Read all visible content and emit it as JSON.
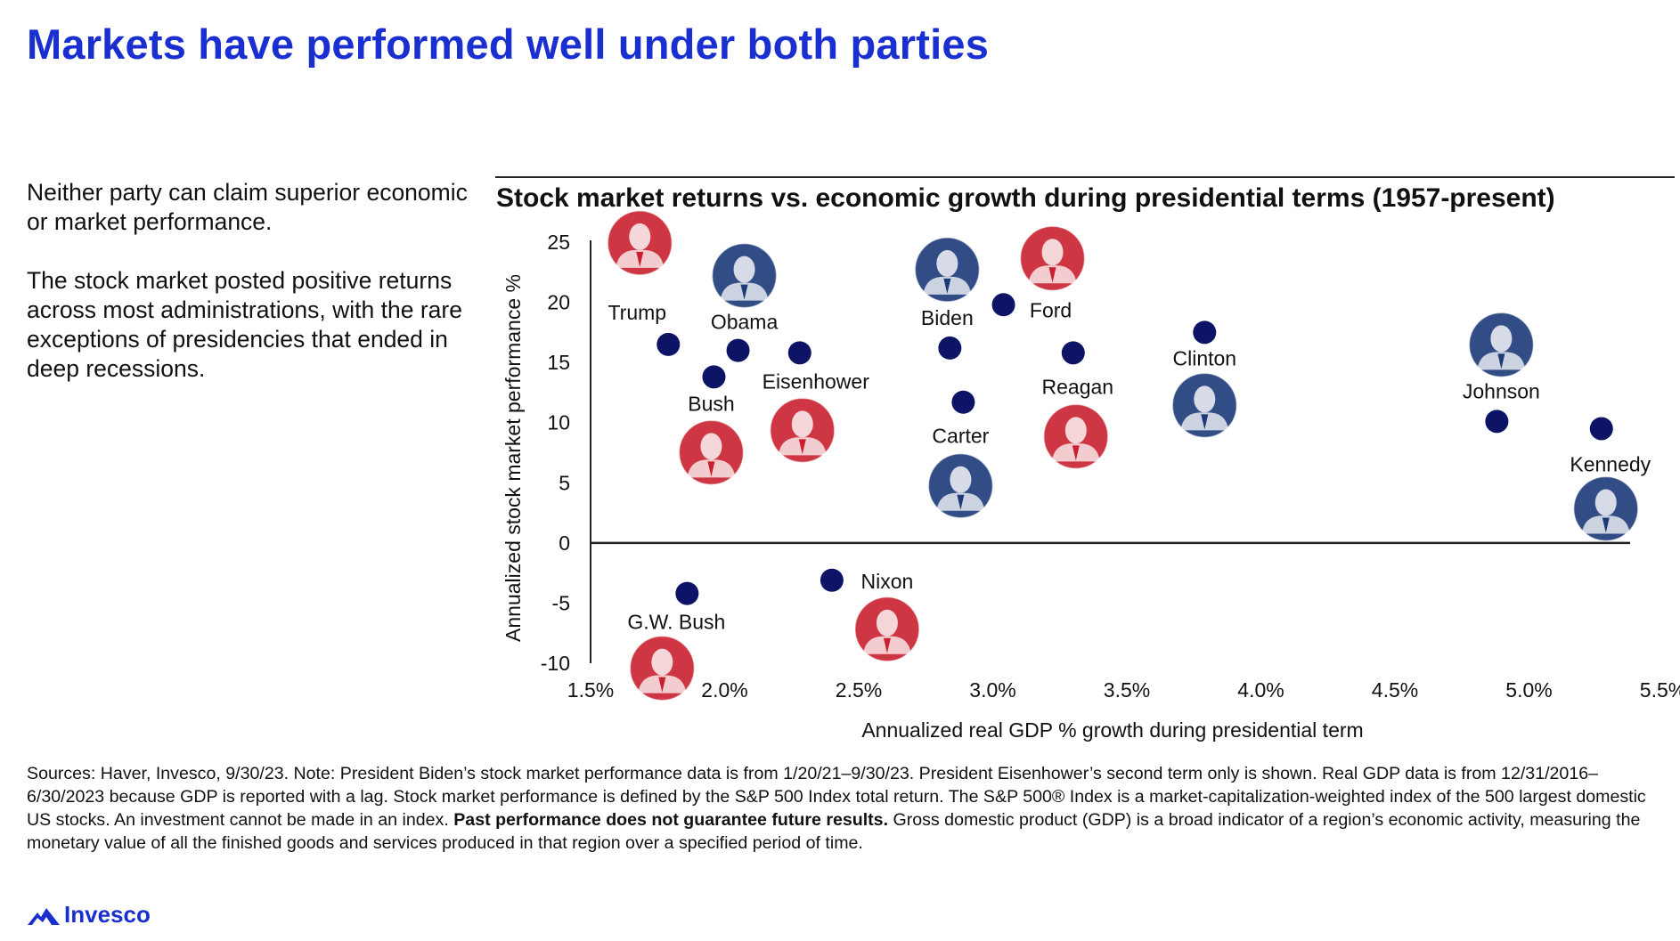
{
  "page": {
    "title": "Markets have performed well under both parties",
    "side_paragraphs": [
      "Neither party can claim superior economic or market performance.",
      "The stock market posted positive returns across most administrations, with the rare exceptions of presidencies that ended in deep recessions."
    ],
    "footnote": {
      "part1": "Sources: Haver, Invesco, 9/30/23. Note: President Biden’s stock market performance data is from 1/20/21–9/30/23. President Eisenhower’s second term only is shown. Real GDP data is from 12/31/2016–6/30/2023 because GDP is reported with a lag. Stock market performance is defined by the S&P 500 Index total return. The S&P 500® Index is a market-capitalization-weighted index of the 500 largest domestic US stocks. An investment cannot be made in an index. ",
      "bold": "Past performance does not guarantee future results.",
      "part2": " Gross domestic product (GDP) is a broad indicator of a region’s economic activity, measuring the monetary value of all the finished goods and services produced in that region over a specified period of time."
    },
    "brand": "Invesco",
    "colors": {
      "title": "#1a2fd0",
      "point": "#0d1466",
      "republican": "#c8202e",
      "democrat": "#1c3a78"
    }
  },
  "chart_data": {
    "type": "scatter",
    "title": "Stock market returns vs. economic growth during presidential terms (1957-present)",
    "xlabel": "Annualized real GDP % growth during presidential term",
    "ylabel": "Annualized stock market performance %",
    "xlim": [
      1.5,
      5.5
    ],
    "ylim": [
      -10,
      25
    ],
    "xticks": [
      "1.5%",
      "2.0%",
      "2.5%",
      "3.0%",
      "3.5%",
      "4.0%",
      "4.5%",
      "5.0%",
      "5.5%"
    ],
    "yticks": [
      "25",
      "20",
      "15",
      "10",
      "5",
      "0",
      "-5",
      "-10"
    ],
    "grid": false,
    "points": [
      {
        "name": "Trump",
        "x": 1.79,
        "y": 16.5,
        "party": "R"
      },
      {
        "name": "Obama",
        "x": 2.05,
        "y": 16.0,
        "party": "D"
      },
      {
        "name": "Bush",
        "x": 1.96,
        "y": 13.8,
        "party": "R"
      },
      {
        "name": "Eisenhower",
        "x": 2.28,
        "y": 15.8,
        "party": "R"
      },
      {
        "name": "Biden",
        "x": 2.84,
        "y": 16.2,
        "party": "D"
      },
      {
        "name": "Ford",
        "x": 3.04,
        "y": 19.8,
        "party": "R"
      },
      {
        "name": "Carter",
        "x": 2.89,
        "y": 11.7,
        "party": "D"
      },
      {
        "name": "Reagan",
        "x": 3.3,
        "y": 15.8,
        "party": "R"
      },
      {
        "name": "Clinton",
        "x": 3.79,
        "y": 17.5,
        "party": "D"
      },
      {
        "name": "Johnson",
        "x": 4.88,
        "y": 10.1,
        "party": "D"
      },
      {
        "name": "Kennedy",
        "x": 5.27,
        "y": 9.5,
        "party": "D"
      },
      {
        "name": "G.W. Bush",
        "x": 1.86,
        "y": -4.2,
        "party": "R"
      },
      {
        "name": "Nixon",
        "x": 2.4,
        "y": -3.1,
        "party": "R"
      }
    ]
  }
}
